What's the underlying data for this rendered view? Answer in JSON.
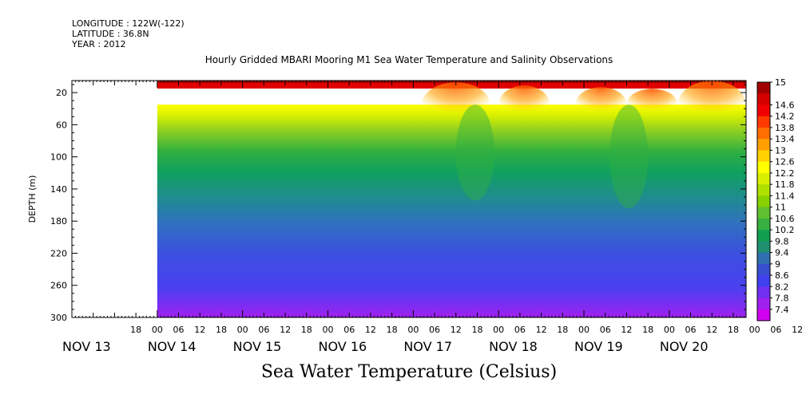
{
  "header": {
    "longitude": "LONGITUDE : 122W(-122)",
    "latitude": "LATITUDE : 36.8N",
    "year": "YEAR : 2012"
  },
  "chart_data": {
    "type": "heatmap",
    "title": "Hourly Gridded MBARI Mooring M1 Sea Water Temperature and Salinity Observations",
    "xlabel": "Sea Water Temperature (Celsius)",
    "ylabel": "DEPTH (m)",
    "y_ticks": [
      20,
      60,
      100,
      140,
      180,
      220,
      260,
      300
    ],
    "ylim": [
      300,
      5
    ],
    "x_hour_ticks": [
      "18",
      "00",
      "06",
      "12",
      "18",
      "00",
      "06",
      "12",
      "18",
      "00",
      "06",
      "12",
      "18",
      "00",
      "06",
      "12",
      "18",
      "00",
      "06",
      "12",
      "18",
      "00",
      "06",
      "12",
      "18",
      "00",
      "06",
      "12",
      "18",
      "00",
      "06",
      "12"
    ],
    "x_day_labels": [
      "NOV 13",
      "NOV 14",
      "NOV 15",
      "NOV 16",
      "NOV 17",
      "NOV 18",
      "NOV 19",
      "NOV 20"
    ],
    "x_range_days": [
      13.0,
      20.9
    ],
    "data_start_day": 14.0,
    "colorbar_levels": [
      "15",
      "14.6",
      "14.2",
      "13.8",
      "13.4",
      "13",
      "12.6",
      "12.2",
      "11.8",
      "11.4",
      "11",
      "10.6",
      "10.2",
      "9.8",
      "9.4",
      "9",
      "8.6",
      "8.2",
      "7.8",
      "7.4"
    ],
    "colorbar_colors": [
      "#a00000",
      "#d40000",
      "#f00000",
      "#ff3a00",
      "#ff6e00",
      "#ffa000",
      "#ffd200",
      "#ffff00",
      "#d8f000",
      "#b0e000",
      "#88d000",
      "#60c030",
      "#38b040",
      "#10a050",
      "#209070",
      "#3070b0",
      "#3850d0",
      "#4040f0",
      "#7030f0",
      "#a020f0",
      "#d000f0"
    ],
    "levels": {
      "surface_temperature": 14.6,
      "no_data_depth_range_m": [
        15,
        35
      ],
      "thermocline_top_depth_m": 35
    },
    "depth_profile": [
      {
        "depth": 35,
        "temperature": 12.6
      },
      {
        "depth": 60,
        "temperature": 11.4
      },
      {
        "depth": 100,
        "temperature": 10.0
      },
      {
        "depth": 140,
        "temperature": 9.3
      },
      {
        "depth": 180,
        "temperature": 8.9
      },
      {
        "depth": 220,
        "temperature": 8.5
      },
      {
        "depth": 260,
        "temperature": 8.2
      },
      {
        "depth": 300,
        "temperature": 7.6
      }
    ]
  }
}
